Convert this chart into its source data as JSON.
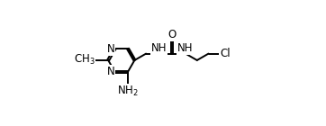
{
  "background": "#ffffff",
  "line_color": "#000000",
  "line_width": 1.4,
  "font_size": 8.5,
  "xlim": [
    -0.05,
    1.0
  ],
  "ylim": [
    -0.05,
    0.85
  ],
  "figsize": [
    3.62,
    1.4
  ],
  "dpi": 100
}
